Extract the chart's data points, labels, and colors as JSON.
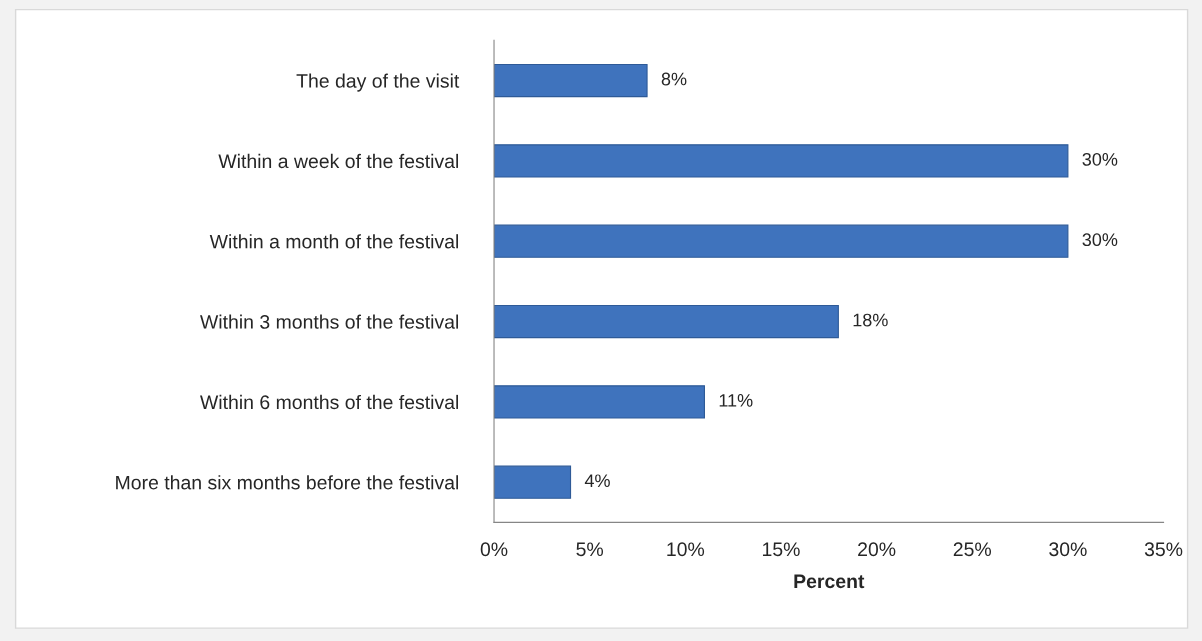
{
  "chart_data": {
    "type": "bar",
    "orientation": "horizontal",
    "xlabel": "Percent",
    "categories": [
      "The day of the visit",
      "Within a week of the festival",
      "Within a month of the festival",
      "Within 3 months of the festival",
      "Within 6 months of the festival",
      "More than six months before the festival"
    ],
    "values": [
      8,
      30,
      30,
      18,
      11,
      4
    ],
    "value_labels": [
      "8%",
      "30%",
      "30%",
      "18%",
      "11%",
      "4%"
    ],
    "color": "#3f73bd",
    "xlim": [
      0,
      35
    ],
    "xticks": [
      {
        "value": 0,
        "label": "0%"
      },
      {
        "value": 5,
        "label": "5%"
      },
      {
        "value": 10,
        "label": "10%"
      },
      {
        "value": 15,
        "label": "15%"
      },
      {
        "value": 20,
        "label": "20%"
      },
      {
        "value": 25,
        "label": "25%"
      },
      {
        "value": 30,
        "label": "30%"
      },
      {
        "value": 35,
        "label": "35%"
      }
    ],
    "grid": false,
    "legend": false
  }
}
